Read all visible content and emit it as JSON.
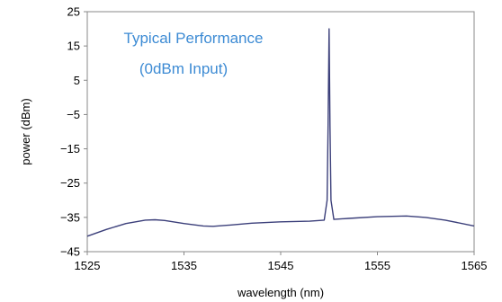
{
  "chart_data": {
    "type": "line",
    "title": "",
    "xlabel": "wavelength (nm)",
    "ylabel": "power (dBm)",
    "xlim": [
      1525,
      1565
    ],
    "ylim": [
      -45,
      25
    ],
    "x_ticks": [
      "1525",
      "1535",
      "1545",
      "1555",
      "1565"
    ],
    "y_ticks": [
      "25",
      "15",
      "5",
      "-5",
      "-15",
      "-25",
      "-35",
      "-45"
    ],
    "grid": false,
    "legend": "none",
    "annotations": [
      "Typical Performance",
      "(0dBm Input)"
    ],
    "colors": {
      "line": "#3b3f7a",
      "annotation": "#3d8bd4",
      "axis": "#888888"
    },
    "series": [
      {
        "x": [
          1525,
          1527,
          1529,
          1531,
          1532,
          1533,
          1535,
          1537,
          1538,
          1540,
          1542,
          1545,
          1548,
          1549.5,
          1549.8,
          1549.9,
          1550,
          1550.1,
          1550.2,
          1550.5,
          1552,
          1555,
          1558,
          1560,
          1562,
          1565
        ],
        "y": [
          -40.5,
          -38.5,
          -36.8,
          -35.8,
          -35.7,
          -35.9,
          -36.8,
          -37.5,
          -37.6,
          -37.2,
          -36.7,
          -36.3,
          -36.1,
          -35.8,
          -30,
          -8,
          20,
          -8,
          -30,
          -35.6,
          -35.3,
          -34.8,
          -34.6,
          -35,
          -35.8,
          -37.5
        ]
      }
    ]
  }
}
